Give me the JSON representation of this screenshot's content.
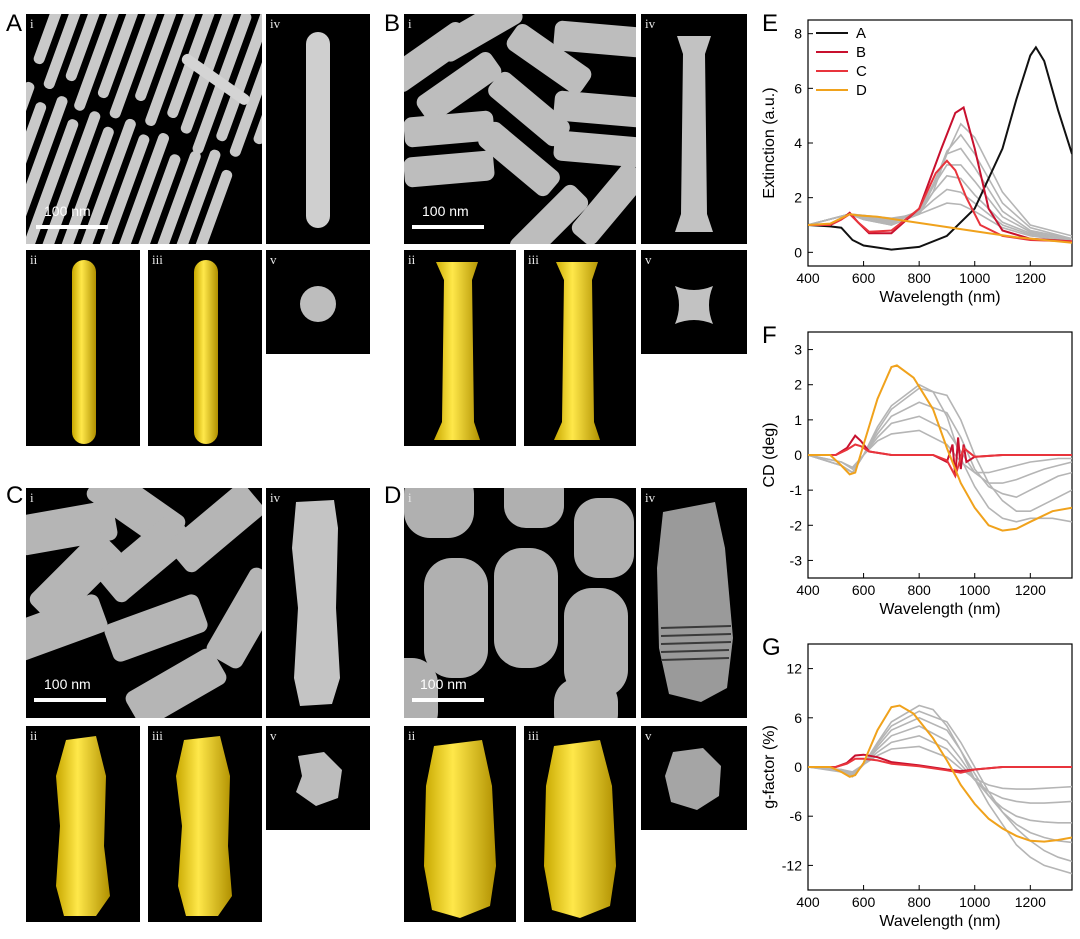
{
  "panels": {
    "A": {
      "letter": "A",
      "scale_bar": "100 nm"
    },
    "B": {
      "letter": "B",
      "scale_bar": "100 nm"
    },
    "C": {
      "letter": "C",
      "scale_bar": "100 nm"
    },
    "D": {
      "letter": "D",
      "scale_bar": "100 nm"
    }
  },
  "roman": {
    "i": "i",
    "ii": "ii",
    "iii": "iii",
    "iv": "iv",
    "v": "v"
  },
  "colors": {
    "A": "#111111",
    "B": "#c8102e",
    "C": "#e8343c",
    "D": "#f0a21c",
    "gray": "#b5b5b5",
    "gold": "#f2d60a"
  },
  "chart_data": [
    {
      "panel": "E",
      "type": "line",
      "xlabel": "Wavelength (nm)",
      "ylabel": "Extinction (a.u.)",
      "xlim": [
        400,
        1350
      ],
      "ylim": [
        -0.5,
        8.5
      ],
      "xticks": [
        400,
        600,
        800,
        1000,
        1200
      ],
      "yticks": [
        0,
        2,
        4,
        6,
        8
      ],
      "legend": [
        "A",
        "B",
        "C",
        "D"
      ],
      "legend_position": "top-left",
      "series": [
        {
          "name": "A",
          "color": "#111111",
          "x": [
            400,
            480,
            520,
            560,
            600,
            700,
            800,
            900,
            1000,
            1100,
            1150,
            1200,
            1220,
            1250,
            1300,
            1350
          ],
          "y": [
            1.0,
            0.95,
            0.9,
            0.45,
            0.25,
            0.1,
            0.2,
            0.6,
            1.6,
            3.8,
            5.6,
            7.2,
            7.5,
            7.0,
            5.2,
            3.6
          ]
        },
        {
          "name": "B",
          "color": "#c8102e",
          "x": [
            400,
            480,
            520,
            550,
            580,
            620,
            700,
            800,
            880,
            930,
            960,
            1000,
            1050,
            1100,
            1200,
            1350
          ],
          "y": [
            1.0,
            1.0,
            1.2,
            1.45,
            1.1,
            0.7,
            0.7,
            1.6,
            3.8,
            5.1,
            5.3,
            3.8,
            1.6,
            0.8,
            0.5,
            0.4
          ]
        },
        {
          "name": "C",
          "color": "#e8343c",
          "x": [
            400,
            480,
            520,
            550,
            580,
            620,
            700,
            800,
            860,
            900,
            930,
            970,
            1020,
            1100,
            1200,
            1350
          ],
          "y": [
            1.0,
            1.0,
            1.2,
            1.4,
            1.1,
            0.75,
            0.8,
            1.6,
            2.9,
            3.35,
            3.0,
            2.0,
            1.0,
            0.6,
            0.45,
            0.4
          ]
        },
        {
          "name": "D",
          "color": "#f0a21c",
          "x": [
            400,
            480,
            520,
            550,
            580,
            650,
            750,
            850,
            950,
            1050,
            1150,
            1250,
            1350
          ],
          "y": [
            1.0,
            1.05,
            1.25,
            1.4,
            1.35,
            1.3,
            1.15,
            1.0,
            0.85,
            0.7,
            0.55,
            0.45,
            0.35
          ]
        }
      ],
      "gray_series": [
        {
          "x": [
            400,
            550,
            600,
            700,
            800,
            850,
            900,
            950,
            1000,
            1100,
            1200,
            1350
          ],
          "y": [
            1.0,
            1.4,
            1.2,
            1.0,
            1.4,
            2.2,
            3.6,
            4.7,
            4.2,
            2.2,
            1.0,
            0.6
          ]
        },
        {
          "x": [
            400,
            550,
            600,
            700,
            800,
            850,
            900,
            950,
            1000,
            1100,
            1200,
            1350
          ],
          "y": [
            1.0,
            1.4,
            1.2,
            1.0,
            1.4,
            2.4,
            3.7,
            4.3,
            3.6,
            1.8,
            0.9,
            0.5
          ]
        },
        {
          "x": [
            400,
            550,
            600,
            700,
            800,
            850,
            900,
            950,
            1000,
            1100,
            1200,
            1350
          ],
          "y": [
            1.0,
            1.4,
            1.25,
            1.05,
            1.5,
            2.5,
            3.6,
            3.8,
            3.1,
            1.5,
            0.8,
            0.5
          ]
        },
        {
          "x": [
            400,
            550,
            600,
            700,
            800,
            850,
            900,
            950,
            1000,
            1100,
            1200,
            1350
          ],
          "y": [
            1.0,
            1.4,
            1.3,
            1.1,
            1.5,
            2.4,
            3.2,
            3.2,
            2.6,
            1.3,
            0.75,
            0.5
          ]
        },
        {
          "x": [
            400,
            550,
            600,
            700,
            800,
            850,
            900,
            950,
            1000,
            1100,
            1200,
            1350
          ],
          "y": [
            1.0,
            1.4,
            1.3,
            1.15,
            1.5,
            2.2,
            2.8,
            2.7,
            2.1,
            1.1,
            0.7,
            0.45
          ]
        },
        {
          "x": [
            400,
            550,
            600,
            700,
            800,
            850,
            900,
            950,
            1000,
            1100,
            1200,
            1350
          ],
          "y": [
            1.0,
            1.4,
            1.35,
            1.2,
            1.45,
            1.9,
            2.3,
            2.2,
            1.8,
            1.0,
            0.65,
            0.45
          ]
        },
        {
          "x": [
            400,
            550,
            600,
            700,
            800,
            850,
            900,
            950,
            1000,
            1100,
            1200,
            1350
          ],
          "y": [
            1.0,
            1.4,
            1.35,
            1.25,
            1.4,
            1.6,
            1.8,
            1.75,
            1.5,
            0.9,
            0.6,
            0.4
          ]
        }
      ]
    },
    {
      "panel": "F",
      "type": "line",
      "xlabel": "Wavelength (nm)",
      "ylabel": "CD (deg)",
      "xlim": [
        400,
        1350
      ],
      "ylim": [
        -3.5,
        3.5
      ],
      "xticks": [
        400,
        600,
        800,
        1000,
        1200
      ],
      "yticks": [
        -3,
        -2,
        -1,
        0,
        1,
        2,
        3
      ],
      "series": [
        {
          "name": "B",
          "color": "#c8102e",
          "x": [
            400,
            500,
            540,
            570,
            590,
            620,
            700,
            850,
            900,
            920,
            930,
            940,
            950,
            960,
            970,
            1000,
            1100,
            1350
          ],
          "y": [
            0,
            0,
            0.2,
            0.55,
            0.4,
            0.1,
            0,
            0,
            -0.2,
            0.3,
            -0.6,
            0.5,
            -0.4,
            0.3,
            -0.2,
            -0.05,
            0,
            0
          ]
        },
        {
          "name": "C",
          "color": "#e8343c",
          "x": [
            400,
            500,
            540,
            570,
            590,
            620,
            700,
            850,
            900,
            930,
            960,
            1000,
            1100,
            1350
          ],
          "y": [
            0,
            0,
            0.15,
            0.3,
            0.25,
            0.1,
            0,
            0,
            -0.15,
            -0.6,
            0.2,
            -0.05,
            0,
            0
          ]
        },
        {
          "name": "D",
          "color": "#f0a21c",
          "x": [
            400,
            480,
            520,
            550,
            570,
            600,
            650,
            700,
            720,
            780,
            850,
            900,
            950,
            1000,
            1050,
            1100,
            1150,
            1200,
            1280,
            1350
          ],
          "y": [
            0,
            0,
            -0.3,
            -0.55,
            -0.5,
            0.3,
            1.6,
            2.5,
            2.55,
            2.2,
            1.3,
            0.2,
            -0.8,
            -1.5,
            -2.0,
            -2.15,
            -2.1,
            -1.9,
            -1.6,
            -1.5
          ]
        }
      ],
      "gray_series": [
        {
          "x": [
            400,
            520,
            560,
            600,
            650,
            700,
            800,
            850,
            900,
            950,
            1000,
            1050,
            1100,
            1150,
            1200,
            1280,
            1350
          ],
          "y": [
            0,
            -0.3,
            -0.5,
            0.0,
            0.8,
            1.4,
            2.0,
            1.8,
            1.1,
            -0.1,
            -0.9,
            -1.5,
            -1.8,
            -1.9,
            -1.8,
            -1.8,
            -1.9
          ]
        },
        {
          "x": [
            400,
            520,
            560,
            600,
            650,
            700,
            800,
            900,
            950,
            1000,
            1050,
            1100,
            1150,
            1200,
            1250,
            1300,
            1350
          ],
          "y": [
            0,
            -0.3,
            -0.5,
            0.0,
            0.7,
            1.3,
            1.9,
            1.7,
            1.0,
            0.0,
            -0.8,
            -1.3,
            -1.6,
            -1.6,
            -1.4,
            -1.2,
            -1.0
          ]
        },
        {
          "x": [
            400,
            520,
            560,
            600,
            650,
            700,
            800,
            900,
            950,
            1000,
            1050,
            1100,
            1150,
            1200,
            1250,
            1300,
            1350
          ],
          "y": [
            0,
            -0.3,
            -0.5,
            0.0,
            0.6,
            1.1,
            1.5,
            1.2,
            0.5,
            -0.4,
            -0.9,
            -1.1,
            -1.2,
            -1.0,
            -0.8,
            -0.6,
            -0.5
          ]
        },
        {
          "x": [
            400,
            520,
            560,
            600,
            650,
            700,
            800,
            900,
            950,
            1000,
            1050,
            1100,
            1150,
            1200,
            1250,
            1300,
            1350
          ],
          "y": [
            0,
            -0.2,
            -0.4,
            0.0,
            0.5,
            0.9,
            1.1,
            0.7,
            0.1,
            -0.5,
            -0.8,
            -0.8,
            -0.7,
            -0.55,
            -0.4,
            -0.3,
            -0.2
          ]
        },
        {
          "x": [
            400,
            520,
            560,
            600,
            650,
            700,
            800,
            900,
            950,
            1000,
            1050,
            1100,
            1150,
            1200,
            1250,
            1300,
            1350
          ],
          "y": [
            0,
            -0.2,
            -0.35,
            0.0,
            0.4,
            0.6,
            0.7,
            0.3,
            -0.2,
            -0.5,
            -0.5,
            -0.4,
            -0.3,
            -0.2,
            -0.15,
            -0.1,
            -0.1
          ]
        }
      ]
    },
    {
      "panel": "G",
      "type": "line",
      "xlabel": "Wavelength (nm)",
      "ylabel": "g-factor (%)",
      "xlim": [
        400,
        1350
      ],
      "ylim": [
        -15,
        15
      ],
      "xticks": [
        400,
        600,
        800,
        1000,
        1200
      ],
      "yticks": [
        -12,
        -6,
        0,
        6,
        12
      ],
      "series": [
        {
          "name": "B",
          "color": "#c8102e",
          "x": [
            400,
            500,
            540,
            570,
            600,
            650,
            700,
            800,
            900,
            950,
            1000,
            1100,
            1350
          ],
          "y": [
            0,
            0,
            0.5,
            1.4,
            1.5,
            1.2,
            0.6,
            0.2,
            -0.3,
            -0.5,
            -0.3,
            0,
            0
          ]
        },
        {
          "name": "C",
          "color": "#e8343c",
          "x": [
            400,
            500,
            540,
            570,
            600,
            650,
            700,
            800,
            900,
            950,
            1000,
            1100,
            1350
          ],
          "y": [
            0,
            0,
            0.4,
            1.0,
            1.0,
            0.8,
            0.4,
            0.1,
            -0.4,
            -0.7,
            -0.3,
            0,
            0
          ]
        },
        {
          "name": "D",
          "color": "#f0a21c",
          "x": [
            400,
            480,
            520,
            550,
            570,
            600,
            650,
            700,
            730,
            780,
            850,
            900,
            950,
            1000,
            1050,
            1100,
            1150,
            1200,
            1250,
            1300,
            1350
          ],
          "y": [
            0,
            0,
            -0.6,
            -1.2,
            -1.0,
            0.5,
            4.5,
            7.3,
            7.5,
            6.5,
            3.5,
            0.8,
            -2.2,
            -4.5,
            -6.3,
            -7.5,
            -8.4,
            -9.0,
            -9.1,
            -8.9,
            -8.6
          ]
        }
      ],
      "gray_series": [
        {
          "x": [
            400,
            520,
            560,
            600,
            650,
            700,
            800,
            850,
            900,
            950,
            1000,
            1050,
            1100,
            1150,
            1200,
            1250,
            1300,
            1350
          ],
          "y": [
            0,
            -0.6,
            -1.2,
            0.3,
            3.0,
            5.5,
            7.5,
            7.0,
            5.0,
            2.0,
            -1.5,
            -4.5,
            -7.0,
            -9.5,
            -11.0,
            -12.0,
            -12.5,
            -13.0
          ]
        },
        {
          "x": [
            400,
            520,
            560,
            600,
            650,
            700,
            800,
            900,
            950,
            1000,
            1050,
            1100,
            1150,
            1200,
            1250,
            1300,
            1350
          ],
          "y": [
            0,
            -0.5,
            -1.1,
            0.3,
            2.8,
            5.0,
            6.8,
            5.5,
            3.0,
            0.0,
            -3.0,
            -5.5,
            -7.5,
            -9.0,
            -10.2,
            -11.0,
            -11.5
          ]
        },
        {
          "x": [
            400,
            520,
            560,
            600,
            650,
            700,
            800,
            900,
            950,
            1000,
            1050,
            1100,
            1150,
            1200,
            1250,
            1300,
            1350
          ],
          "y": [
            0,
            -0.5,
            -1.0,
            0.3,
            2.5,
            4.5,
            6.0,
            4.5,
            2.0,
            -0.8,
            -3.5,
            -5.5,
            -7.0,
            -8.0,
            -8.6,
            -9.0,
            -9.2
          ]
        },
        {
          "x": [
            400,
            520,
            560,
            600,
            650,
            700,
            800,
            900,
            950,
            1000,
            1050,
            1100,
            1150,
            1200,
            1250,
            1300,
            1350
          ],
          "y": [
            0,
            -0.4,
            -0.9,
            0.3,
            2.2,
            3.8,
            5.0,
            3.2,
            1.0,
            -1.5,
            -3.5,
            -5.0,
            -6.0,
            -6.5,
            -6.7,
            -6.8,
            -6.8
          ]
        },
        {
          "x": [
            400,
            520,
            560,
            600,
            650,
            700,
            800,
            900,
            950,
            1000,
            1050,
            1100,
            1150,
            1200,
            1250,
            1300,
            1350
          ],
          "y": [
            0,
            -0.3,
            -0.7,
            0.3,
            1.8,
            3.0,
            3.8,
            2.2,
            0.3,
            -1.6,
            -3.0,
            -3.8,
            -4.2,
            -4.4,
            -4.4,
            -4.3,
            -4.2
          ]
        },
        {
          "x": [
            400,
            520,
            560,
            600,
            650,
            700,
            800,
            900,
            950,
            1000,
            1050,
            1100,
            1150,
            1200,
            1250,
            1300,
            1350
          ],
          "y": [
            0,
            -0.3,
            -0.6,
            0.3,
            1.4,
            2.2,
            2.5,
            1.2,
            -0.2,
            -1.4,
            -2.2,
            -2.6,
            -2.7,
            -2.7,
            -2.6,
            -2.5,
            -2.4
          ]
        }
      ]
    }
  ]
}
